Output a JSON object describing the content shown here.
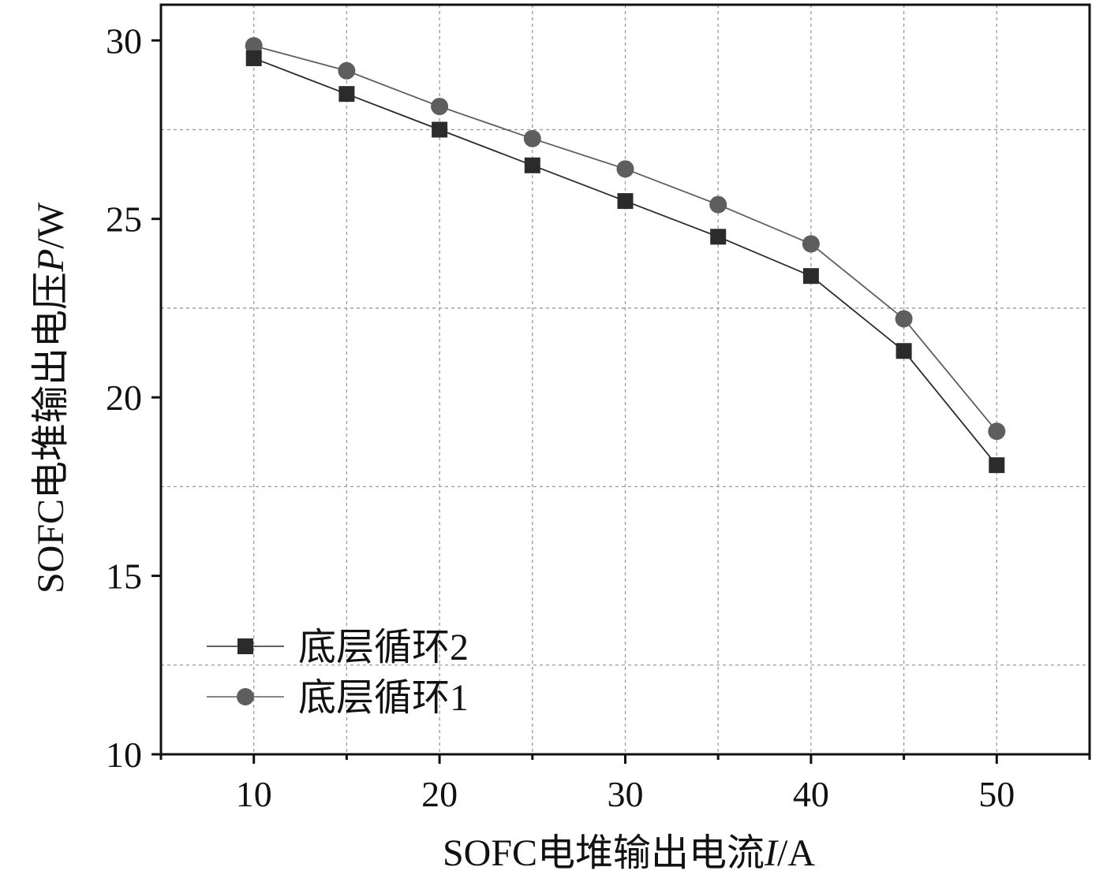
{
  "chart_data": {
    "type": "line",
    "title": "",
    "xlabel": "SOFC电堆输出电流I/A",
    "ylabel": "SOFC电堆输出电压P/W",
    "xlabel_parts": {
      "prefix": "SOFC电堆输出电流",
      "symbol": "I",
      "unit": "/A"
    },
    "ylabel_parts": {
      "prefix": "SOFC电堆输出电压",
      "symbol": "P",
      "unit": "/W"
    },
    "xlim": [
      5,
      55
    ],
    "ylim": [
      10,
      31
    ],
    "x_ticks": [
      10,
      20,
      30,
      40,
      50
    ],
    "y_ticks": [
      10,
      15,
      20,
      25,
      30
    ],
    "x_minor_ticks": [
      5,
      15,
      25,
      35,
      45,
      55
    ],
    "x_grid": [
      10,
      15,
      20,
      25,
      30,
      35,
      40,
      45,
      50
    ],
    "y_grid": [
      12.5,
      17.5,
      22.5,
      27.5
    ],
    "grid": true,
    "legend_position": "bottom-left",
    "x": [
      10,
      15,
      20,
      25,
      30,
      35,
      40,
      45,
      50
    ],
    "series": [
      {
        "name": "底层循环2",
        "marker": "square",
        "color": "#2b2b2b",
        "values": [
          29.5,
          28.5,
          27.5,
          26.5,
          25.5,
          24.5,
          23.4,
          21.3,
          18.1
        ]
      },
      {
        "name": "底层循环1",
        "marker": "circle",
        "color": "#5e5e5e",
        "values": [
          29.85,
          29.15,
          28.15,
          27.25,
          26.4,
          25.4,
          24.3,
          22.2,
          19.05
        ]
      }
    ]
  }
}
